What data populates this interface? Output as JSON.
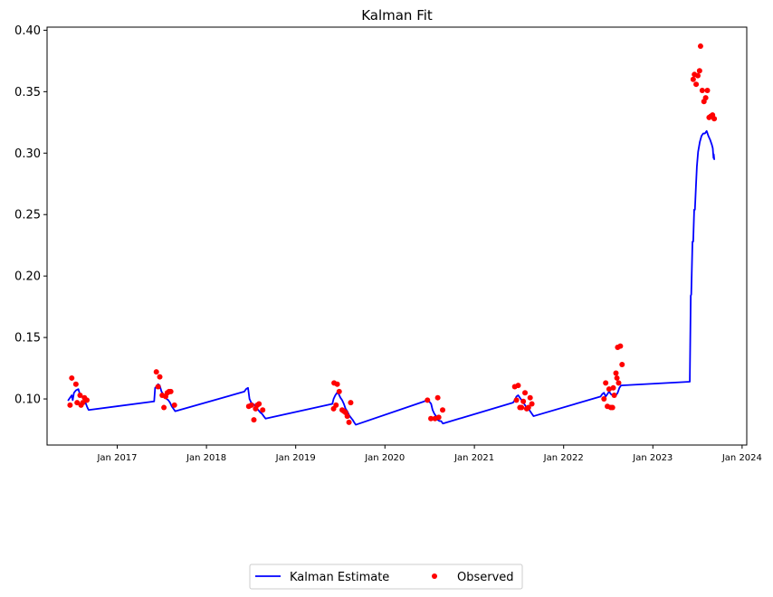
{
  "chart_data": {
    "type": "line",
    "title": "Kalman Fit",
    "xlabel": "",
    "ylabel": "",
    "x_axis": {
      "type": "date",
      "range": [
        "2016-03-20",
        "2024-01-20"
      ],
      "ticks": [
        {
          "date": "2017-01-01",
          "label": "Jan 2017"
        },
        {
          "date": "2018-01-01",
          "label": "Jan 2018"
        },
        {
          "date": "2019-01-01",
          "label": "Jan 2019"
        },
        {
          "date": "2020-01-01",
          "label": "Jan 2020"
        },
        {
          "date": "2021-01-01",
          "label": "Jan 2021"
        },
        {
          "date": "2022-01-01",
          "label": "Jan 2022"
        },
        {
          "date": "2023-01-01",
          "label": "Jan 2023"
        },
        {
          "date": "2024-01-01",
          "label": "Jan 2024"
        }
      ]
    },
    "y_axis": {
      "range": [
        0.0625,
        0.4025
      ],
      "ticks": [
        {
          "value": 0.1,
          "label": "0.10"
        },
        {
          "value": 0.15,
          "label": "0.15"
        },
        {
          "value": 0.2,
          "label": "0.20"
        },
        {
          "value": 0.25,
          "label": "0.25"
        },
        {
          "value": 0.3,
          "label": "0.30"
        },
        {
          "value": 0.35,
          "label": "0.35"
        },
        {
          "value": 0.4,
          "label": "0.40"
        }
      ]
    },
    "grid": false,
    "legend": {
      "placement": "bottom-center",
      "columns": 2
    },
    "series": [
      {
        "name": "Kalman Estimate",
        "kind": "line",
        "color": "#0000ff",
        "points": [
          [
            "2016-06-15",
            0.099
          ],
          [
            "2016-06-22",
            0.101
          ],
          [
            "2016-06-29",
            0.103
          ],
          [
            "2016-07-03",
            0.099
          ],
          [
            "2016-07-08",
            0.105
          ],
          [
            "2016-07-16",
            0.107
          ],
          [
            "2016-07-26",
            0.108
          ],
          [
            "2016-08-01",
            0.104
          ],
          [
            "2016-08-06",
            0.103
          ],
          [
            "2016-08-13",
            0.101
          ],
          [
            "2016-08-20",
            0.1
          ],
          [
            "2016-08-26",
            0.096
          ],
          [
            "2016-09-01",
            0.093
          ],
          [
            "2016-09-06",
            0.091
          ],
          [
            "2017-06-01",
            0.098
          ],
          [
            "2017-06-05",
            0.109
          ],
          [
            "2017-06-10",
            0.11
          ],
          [
            "2017-06-17",
            0.112
          ],
          [
            "2017-06-24",
            0.111
          ],
          [
            "2017-07-01",
            0.106
          ],
          [
            "2017-07-08",
            0.104
          ],
          [
            "2017-07-15",
            0.102
          ],
          [
            "2017-07-22",
            0.1
          ],
          [
            "2017-07-29",
            0.099
          ],
          [
            "2017-08-05",
            0.097
          ],
          [
            "2017-08-12",
            0.094
          ],
          [
            "2017-08-19",
            0.092
          ],
          [
            "2017-08-26",
            0.09
          ],
          [
            "2018-06-05",
            0.106
          ],
          [
            "2018-06-12",
            0.108
          ],
          [
            "2018-06-20",
            0.109
          ],
          [
            "2018-06-26",
            0.1
          ],
          [
            "2018-07-03",
            0.097
          ],
          [
            "2018-07-10",
            0.096
          ],
          [
            "2018-07-17",
            0.095
          ],
          [
            "2018-07-24",
            0.093
          ],
          [
            "2018-08-01",
            0.091
          ],
          [
            "2018-08-09",
            0.089
          ],
          [
            "2018-08-16",
            0.088
          ],
          [
            "2018-08-23",
            0.086
          ],
          [
            "2018-08-31",
            0.084
          ],
          [
            "2019-05-31",
            0.096
          ],
          [
            "2019-06-05",
            0.1
          ],
          [
            "2019-06-12",
            0.103
          ],
          [
            "2019-06-19",
            0.105
          ],
          [
            "2019-06-26",
            0.104
          ],
          [
            "2019-07-03",
            0.101
          ],
          [
            "2019-07-10",
            0.099
          ],
          [
            "2019-07-17",
            0.096
          ],
          [
            "2019-07-24",
            0.092
          ],
          [
            "2019-07-31",
            0.09
          ],
          [
            "2019-08-07",
            0.087
          ],
          [
            "2019-08-14",
            0.085
          ],
          [
            "2019-08-22",
            0.083
          ],
          [
            "2019-08-28",
            0.081
          ],
          [
            "2019-09-04",
            0.079
          ],
          [
            "2020-06-10",
            0.098
          ],
          [
            "2020-06-19",
            0.099
          ],
          [
            "2020-06-30",
            0.098
          ],
          [
            "2020-07-08",
            0.096
          ],
          [
            "2020-07-14",
            0.091
          ],
          [
            "2020-07-21",
            0.088
          ],
          [
            "2020-07-28",
            0.086
          ],
          [
            "2020-08-04",
            0.083
          ],
          [
            "2020-08-11",
            0.082
          ],
          [
            "2020-08-18",
            0.082
          ],
          [
            "2020-08-25",
            0.08
          ],
          [
            "2021-06-08",
            0.097
          ],
          [
            "2021-06-15",
            0.099
          ],
          [
            "2021-06-22",
            0.102
          ],
          [
            "2021-06-29",
            0.103
          ],
          [
            "2021-07-06",
            0.101
          ],
          [
            "2021-07-13",
            0.099
          ],
          [
            "2021-07-20",
            0.097
          ],
          [
            "2021-07-27",
            0.095
          ],
          [
            "2021-08-03",
            0.093
          ],
          [
            "2021-08-10",
            0.092
          ],
          [
            "2021-08-17",
            0.09
          ],
          [
            "2021-08-24",
            0.088
          ],
          [
            "2021-08-31",
            0.086
          ],
          [
            "2022-06-01",
            0.102
          ],
          [
            "2022-06-08",
            0.104
          ],
          [
            "2022-06-15",
            0.105
          ],
          [
            "2022-06-22",
            0.102
          ],
          [
            "2022-06-29",
            0.104
          ],
          [
            "2022-07-06",
            0.106
          ],
          [
            "2022-07-13",
            0.104
          ],
          [
            "2022-07-20",
            0.103
          ],
          [
            "2022-07-27",
            0.102
          ],
          [
            "2022-08-03",
            0.103
          ],
          [
            "2022-08-10",
            0.105
          ],
          [
            "2022-08-17",
            0.109
          ],
          [
            "2022-08-24",
            0.111
          ],
          [
            "2023-06-01",
            0.114
          ],
          [
            "2023-06-05",
            0.184
          ],
          [
            "2023-06-07",
            0.185
          ],
          [
            "2023-06-12",
            0.228
          ],
          [
            "2023-06-15",
            0.228
          ],
          [
            "2023-06-19",
            0.254
          ],
          [
            "2023-06-22",
            0.254
          ],
          [
            "2023-06-26",
            0.272
          ],
          [
            "2023-06-30",
            0.289
          ],
          [
            "2023-07-05",
            0.301
          ],
          [
            "2023-07-12",
            0.309
          ],
          [
            "2023-07-19",
            0.314
          ],
          [
            "2023-07-26",
            0.316
          ],
          [
            "2023-08-02",
            0.316
          ],
          [
            "2023-08-09",
            0.318
          ],
          [
            "2023-08-16",
            0.314
          ],
          [
            "2023-08-23",
            0.311
          ],
          [
            "2023-08-30",
            0.307
          ],
          [
            "2023-09-03",
            0.304
          ],
          [
            "2023-09-06",
            0.296
          ],
          [
            "2023-09-07",
            0.299
          ],
          [
            "2023-09-09",
            0.295
          ]
        ]
      },
      {
        "name": "Observed",
        "kind": "scatter",
        "color": "#ff0000",
        "points": [
          [
            "2016-06-22",
            0.095
          ],
          [
            "2016-06-29",
            0.117
          ],
          [
            "2016-07-16",
            0.112
          ],
          [
            "2016-07-21",
            0.097
          ],
          [
            "2016-08-02",
            0.103
          ],
          [
            "2016-08-06",
            0.095
          ],
          [
            "2016-08-13",
            0.097
          ],
          [
            "2016-08-20",
            0.101
          ],
          [
            "2016-08-30",
            0.099
          ],
          [
            "2017-06-10",
            0.122
          ],
          [
            "2017-06-17",
            0.11
          ],
          [
            "2017-06-24",
            0.118
          ],
          [
            "2017-07-04",
            0.103
          ],
          [
            "2017-07-11",
            0.093
          ],
          [
            "2017-07-18",
            0.102
          ],
          [
            "2017-07-25",
            0.105
          ],
          [
            "2017-08-01",
            0.106
          ],
          [
            "2017-08-08",
            0.106
          ],
          [
            "2017-08-23",
            0.095
          ],
          [
            "2018-06-23",
            0.094
          ],
          [
            "2018-07-04",
            0.095
          ],
          [
            "2018-07-14",
            0.083
          ],
          [
            "2018-07-21",
            0.092
          ],
          [
            "2018-07-28",
            0.095
          ],
          [
            "2018-08-04",
            0.096
          ],
          [
            "2018-08-19",
            0.091
          ],
          [
            "2019-06-05",
            0.092
          ],
          [
            "2019-06-07",
            0.113
          ],
          [
            "2019-06-15",
            0.095
          ],
          [
            "2019-06-20",
            0.112
          ],
          [
            "2019-06-28",
            0.106
          ],
          [
            "2019-07-10",
            0.091
          ],
          [
            "2019-07-17",
            0.09
          ],
          [
            "2019-07-24",
            0.089
          ],
          [
            "2019-07-31",
            0.086
          ],
          [
            "2019-08-07",
            0.081
          ],
          [
            "2019-08-14",
            0.097
          ],
          [
            "2020-06-23",
            0.099
          ],
          [
            "2020-07-07",
            0.084
          ],
          [
            "2020-07-24",
            0.084
          ],
          [
            "2020-08-04",
            0.101
          ],
          [
            "2020-08-08",
            0.085
          ],
          [
            "2020-08-24",
            0.091
          ],
          [
            "2021-06-15",
            0.11
          ],
          [
            "2021-06-22",
            0.099
          ],
          [
            "2021-06-29",
            0.111
          ],
          [
            "2021-07-06",
            0.093
          ],
          [
            "2021-07-13",
            0.093
          ],
          [
            "2021-07-20",
            0.098
          ],
          [
            "2021-07-27",
            0.105
          ],
          [
            "2021-08-03",
            0.092
          ],
          [
            "2021-08-10",
            0.093
          ],
          [
            "2021-08-17",
            0.101
          ],
          [
            "2021-08-24",
            0.096
          ],
          [
            "2022-06-15",
            0.1
          ],
          [
            "2022-06-22",
            0.113
          ],
          [
            "2022-06-29",
            0.094
          ],
          [
            "2022-07-06",
            0.108
          ],
          [
            "2022-07-13",
            0.093
          ],
          [
            "2022-07-20",
            0.093
          ],
          [
            "2022-07-23",
            0.109
          ],
          [
            "2022-07-27",
            0.103
          ],
          [
            "2022-08-03",
            0.121
          ],
          [
            "2022-08-07",
            0.117
          ],
          [
            "2022-08-10",
            0.142
          ],
          [
            "2022-08-14",
            0.113
          ],
          [
            "2022-08-21",
            0.143
          ],
          [
            "2022-08-28",
            0.128
          ],
          [
            "2023-06-15",
            0.36
          ],
          [
            "2023-06-20",
            0.364
          ],
          [
            "2023-06-27",
            0.356
          ],
          [
            "2023-07-04",
            0.363
          ],
          [
            "2023-07-11",
            0.367
          ],
          [
            "2023-07-15",
            0.387
          ],
          [
            "2023-07-22",
            0.351
          ],
          [
            "2023-07-29",
            0.342
          ],
          [
            "2023-08-05",
            0.345
          ],
          [
            "2023-08-12",
            0.351
          ],
          [
            "2023-08-19",
            0.329
          ],
          [
            "2023-08-26",
            0.33
          ],
          [
            "2023-09-02",
            0.331
          ],
          [
            "2023-09-09",
            0.328
          ]
        ]
      }
    ]
  }
}
